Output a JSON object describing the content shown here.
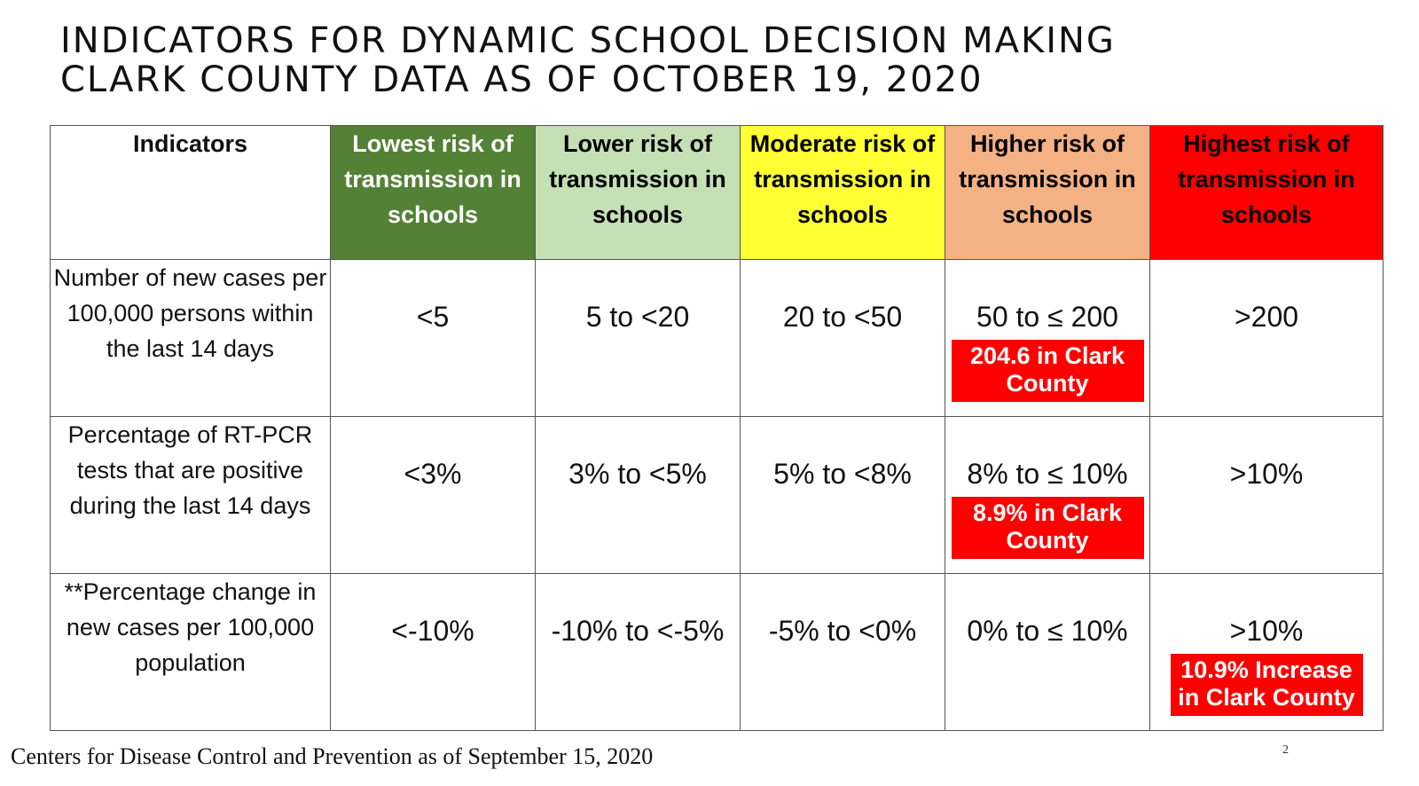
{
  "title": {
    "line1": "INDICATORS FOR DYNAMIC SCHOOL DECISION MAKING",
    "line2": "CLARK COUNTY DATA AS OF OCTOBER 19, 2020"
  },
  "table": {
    "header": {
      "indicators": "Indicators",
      "levels": [
        "Lowest risk of transmission in schools",
        "Lower risk of transmission in schools",
        "Moderate risk of transmission in schools",
        "Higher risk of transmission in schools",
        "Highest risk of transmission in schools"
      ]
    },
    "header_colors": [
      "#538135",
      "#c5e0b4",
      "#ffff33",
      "#f4b183",
      "#ff0000"
    ],
    "rows": [
      {
        "label": "Number of new cases per 100,000 persons within the last 14 days",
        "values": [
          "<5",
          "5 to <20",
          "20 to <50",
          "50 to ≤ 200",
          ">200"
        ],
        "badge": "204.6 in Clark County"
      },
      {
        "label": "Percentage of RT-PCR tests that are positive during the last 14 days",
        "values": [
          "<3%",
          "3% to <5%",
          "5% to <8%",
          "8% to ≤ 10%",
          ">10%"
        ],
        "badge": "8.9% in Clark County"
      },
      {
        "label": "**Percentage change in new cases per 100,000 population",
        "values": [
          "<-10%",
          "-10% to <-5%",
          "-5% to <0%",
          "0% to ≤ 10%",
          ">10%"
        ],
        "badge": "10.9% Increase in Clark County"
      }
    ]
  },
  "footer": {
    "source": "Centers for Disease Control and Prevention as of September 15, 2020",
    "page_number": "2"
  }
}
